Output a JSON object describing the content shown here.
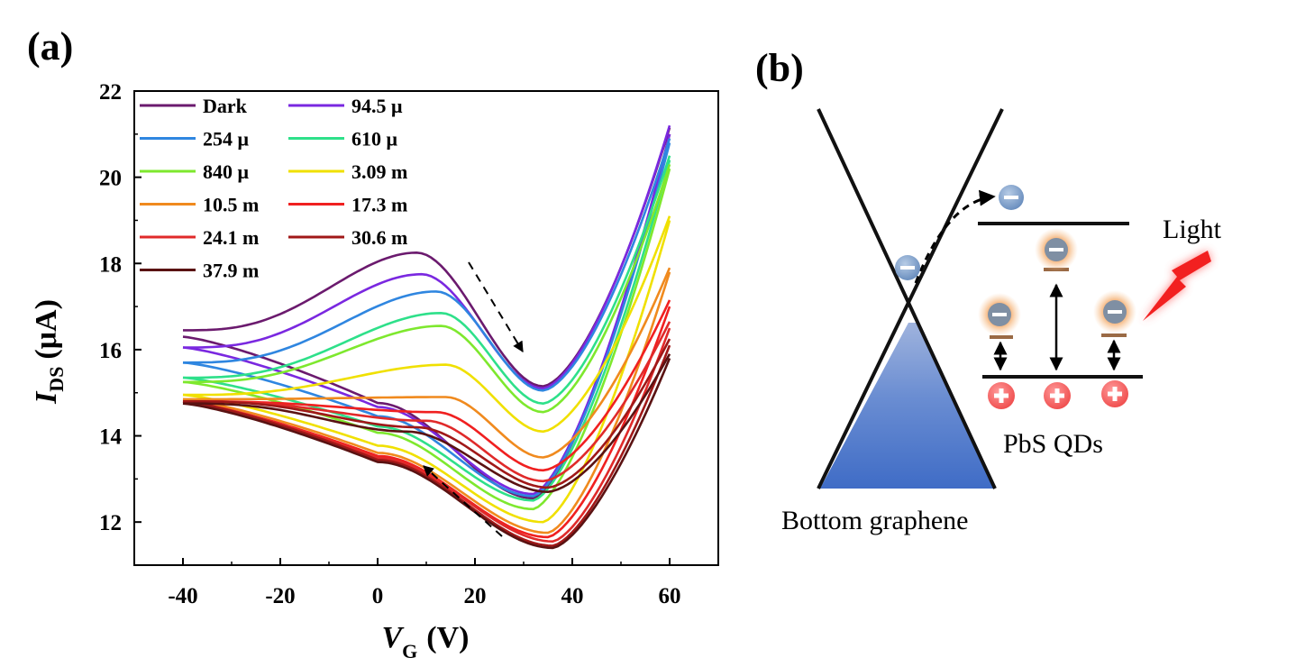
{
  "figure": {
    "panel_a_label": "(a)",
    "panel_b_label": "(b)"
  },
  "chart_data": {
    "type": "line",
    "xlabel_main": "V",
    "xlabel_sub": "G",
    "xlabel_unit": "(V)",
    "ylabel_main": "I",
    "ylabel_sub": "DS",
    "ylabel_unit": "(μA)",
    "xlim": [
      -50,
      70
    ],
    "ylim": [
      11,
      22
    ],
    "xticks": [
      -40,
      -20,
      0,
      20,
      40,
      60
    ],
    "yticks": [
      12,
      14,
      16,
      18,
      20,
      22
    ],
    "grid": false,
    "legend_placement": "top-left",
    "series": [
      {
        "name": "Dark",
        "color": "#6b1a6e",
        "back": {
          "start": 16.45,
          "peak_x": 8,
          "peak_y": 18.25,
          "min_x": 34,
          "min_y": 15.15,
          "end": 21.15
        },
        "fwd": {
          "start": 16.3,
          "min_x": 32,
          "min_y": 12.55,
          "end": 21.0
        }
      },
      {
        "name": "94.5 μ",
        "color": "#7a28e0",
        "back": {
          "start": 16.05,
          "peak_x": 9,
          "peak_y": 17.75,
          "min_x": 34,
          "min_y": 15.1,
          "end": 21.2
        },
        "fwd": {
          "start": 16.05,
          "min_x": 32,
          "min_y": 12.65,
          "end": 21.0
        }
      },
      {
        "name": "254 μ",
        "color": "#2f86e0",
        "back": {
          "start": 15.7,
          "peak_x": 12,
          "peak_y": 17.35,
          "min_x": 34,
          "min_y": 15.05,
          "end": 20.9
        },
        "fwd": {
          "start": 15.7,
          "min_x": 32,
          "min_y": 12.6,
          "end": 20.8
        }
      },
      {
        "name": "610 μ",
        "color": "#2ee08a",
        "back": {
          "start": 15.35,
          "peak_x": 13,
          "peak_y": 16.85,
          "min_x": 34,
          "min_y": 14.75,
          "end": 20.5
        },
        "fwd": {
          "start": 15.35,
          "min_x": 32,
          "min_y": 12.5,
          "end": 20.4
        }
      },
      {
        "name": "840 μ",
        "color": "#7ee82e",
        "back": {
          "start": 15.25,
          "peak_x": 13,
          "peak_y": 16.55,
          "min_x": 34,
          "min_y": 14.55,
          "end": 20.3
        },
        "fwd": {
          "start": 15.25,
          "min_x": 32,
          "min_y": 12.3,
          "end": 20.2
        }
      },
      {
        "name": "3.09 m",
        "color": "#f0e000",
        "back": {
          "start": 14.95,
          "peak_x": 14,
          "peak_y": 15.65,
          "min_x": 34,
          "min_y": 14.1,
          "end": 19.1
        },
        "fwd": {
          "start": 14.95,
          "min_x": 34,
          "min_y": 12.0,
          "end": 19.0
        }
      },
      {
        "name": "10.5  m",
        "color": "#f08a1e",
        "back": {
          "start": 14.85,
          "peak_x": 14,
          "peak_y": 14.9,
          "min_x": 34,
          "min_y": 13.5,
          "end": 17.9
        },
        "fwd": {
          "start": 14.85,
          "min_x": 35,
          "min_y": 11.75,
          "end": 17.8
        }
      },
      {
        "name": "17.3 m",
        "color": "#f02020",
        "back": {
          "start": 14.8,
          "peak_x": 12,
          "peak_y": 14.55,
          "min_x": 34,
          "min_y": 13.2,
          "end": 17.15
        },
        "fwd": {
          "start": 14.8,
          "min_x": 35,
          "min_y": 11.65,
          "end": 17.0
        }
      },
      {
        "name": "24.1 m",
        "color": "#e02a2a",
        "back": {
          "start": 14.8,
          "peak_x": 10,
          "peak_y": 14.35,
          "min_x": 34,
          "min_y": 12.95,
          "end": 16.65
        },
        "fwd": {
          "start": 14.8,
          "min_x": 36,
          "min_y": 11.55,
          "end": 16.5
        }
      },
      {
        "name": "30.6 m",
        "color": "#a01818",
        "back": {
          "start": 14.8,
          "peak_x": 8,
          "peak_y": 14.2,
          "min_x": 35,
          "min_y": 12.8,
          "end": 16.25
        },
        "fwd": {
          "start": 14.8,
          "min_x": 36,
          "min_y": 11.45,
          "end": 16.1
        }
      },
      {
        "name": "37.9 m",
        "color": "#5a1212",
        "back": {
          "start": 14.75,
          "peak_x": 6,
          "peak_y": 14.1,
          "min_x": 35,
          "min_y": 12.7,
          "end": 15.9
        },
        "fwd": {
          "start": 14.75,
          "min_x": 36,
          "min_y": 11.4,
          "end": 15.8
        }
      }
    ]
  },
  "diagram": {
    "caption": "Bottom graphene",
    "qd_label": "PbS QDs",
    "light_label": "Light"
  }
}
